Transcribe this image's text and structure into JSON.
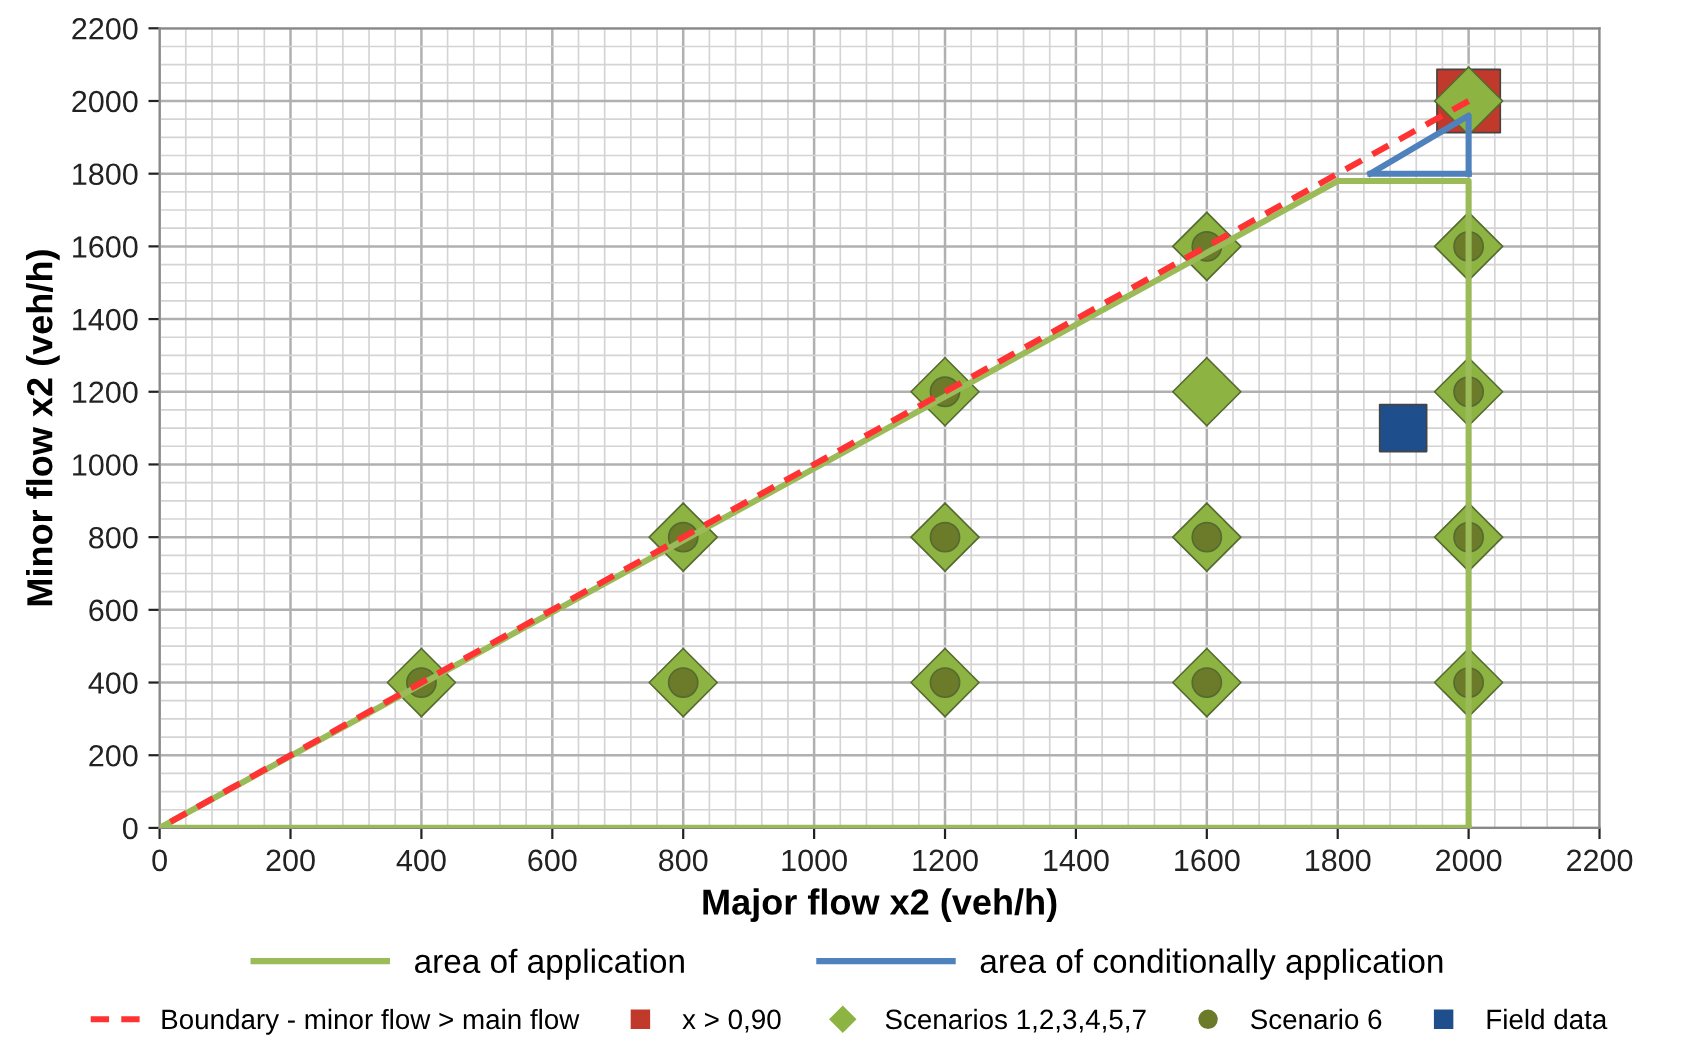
{
  "chart_data": {
    "type": "line",
    "xlabel": "Major flow x2 (veh/h)",
    "ylabel": "Minor flow x2 (veh/h)",
    "xlim": [
      0,
      2200
    ],
    "ylim": [
      0,
      2200
    ],
    "xticks": [
      0,
      200,
      400,
      600,
      800,
      1000,
      1200,
      1400,
      1600,
      1800,
      2000,
      2200
    ],
    "yticks": [
      0,
      200,
      400,
      600,
      800,
      1000,
      1200,
      1400,
      1600,
      1800,
      2000,
      2200
    ],
    "grid": true,
    "legend": "bottom",
    "series": [
      {
        "name": "area of application",
        "color": "#9bbb59",
        "line_style": "solid",
        "marker": "none",
        "x": [
          0,
          1800,
          2000,
          2000
        ],
        "values": [
          0,
          1780,
          1780,
          0
        ]
      },
      {
        "color": "#9bbb59",
        "line_style": "solid",
        "marker": "none",
        "x": [
          0,
          2000
        ],
        "values": [
          0,
          0
        ]
      },
      {
        "name": "area of conditionally application",
        "color": "#4f81bd",
        "line_style": "solid",
        "marker": "none",
        "x": [
          1850,
          2000,
          2000
        ],
        "values": [
          1800,
          1960,
          1800
        ]
      },
      {
        "color": "#4f81bd",
        "line_style": "solid",
        "marker": "none",
        "x": [
          1850,
          2000
        ],
        "values": [
          1800,
          1800
        ]
      },
      {
        "name": "Boundary - minor flow > main flow",
        "color": "#ff3333",
        "line_style": "dashed",
        "marker": "none",
        "x": [
          0,
          2000
        ],
        "values": [
          0,
          2000
        ]
      },
      {
        "name": "x > 0,90",
        "type": "scatter",
        "color": "#c0392b",
        "marker": "square",
        "x": [
          2000
        ],
        "values": [
          2000
        ]
      },
      {
        "name": "Scenarios 1,2,3,4,5,7",
        "type": "scatter",
        "color": "#8db443",
        "marker": "diamond",
        "x": [
          400,
          800,
          800,
          1200,
          1200,
          1200,
          1600,
          1600,
          1600,
          1600,
          2000,
          2000,
          2000,
          2000,
          2000
        ],
        "values": [
          400,
          400,
          800,
          400,
          800,
          1200,
          400,
          800,
          1200,
          1600,
          400,
          800,
          1200,
          1600,
          2000
        ]
      },
      {
        "name": "Scenario 6",
        "type": "scatter",
        "color": "#6b7b2a",
        "marker": "circle",
        "x": [
          400,
          800,
          800,
          1200,
          1200,
          1200,
          1600,
          1600,
          1600,
          2000,
          2000,
          2000,
          2000
        ],
        "values": [
          400,
          400,
          800,
          400,
          800,
          1200,
          400,
          800,
          1600,
          400,
          800,
          1200,
          1600
        ]
      },
      {
        "name": "Field data",
        "type": "scatter",
        "color": "#1f4e8c",
        "marker": "square",
        "x": [
          1900
        ],
        "values": [
          1100
        ]
      }
    ]
  }
}
